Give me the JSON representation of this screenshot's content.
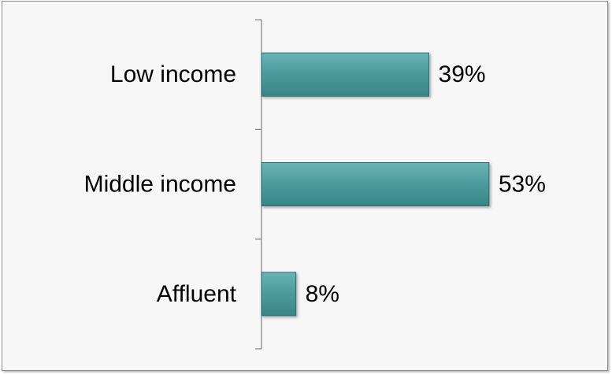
{
  "chart_data": {
    "type": "bar",
    "orientation": "horizontal",
    "categories": [
      "Low income",
      "Middle income",
      "Affluent"
    ],
    "values": [
      39,
      53,
      8
    ],
    "value_labels": [
      "39%",
      "53%",
      "8%"
    ],
    "unit": "%",
    "title": "",
    "xlabel": "",
    "ylabel": "",
    "xlim": [
      0,
      60
    ],
    "grid": false,
    "legend": "none"
  },
  "colors": {
    "bar_fill": "#4a9a9c",
    "bar_stroke": "#2e6d70",
    "axis": "#808080",
    "background": "#f7f7f7"
  }
}
